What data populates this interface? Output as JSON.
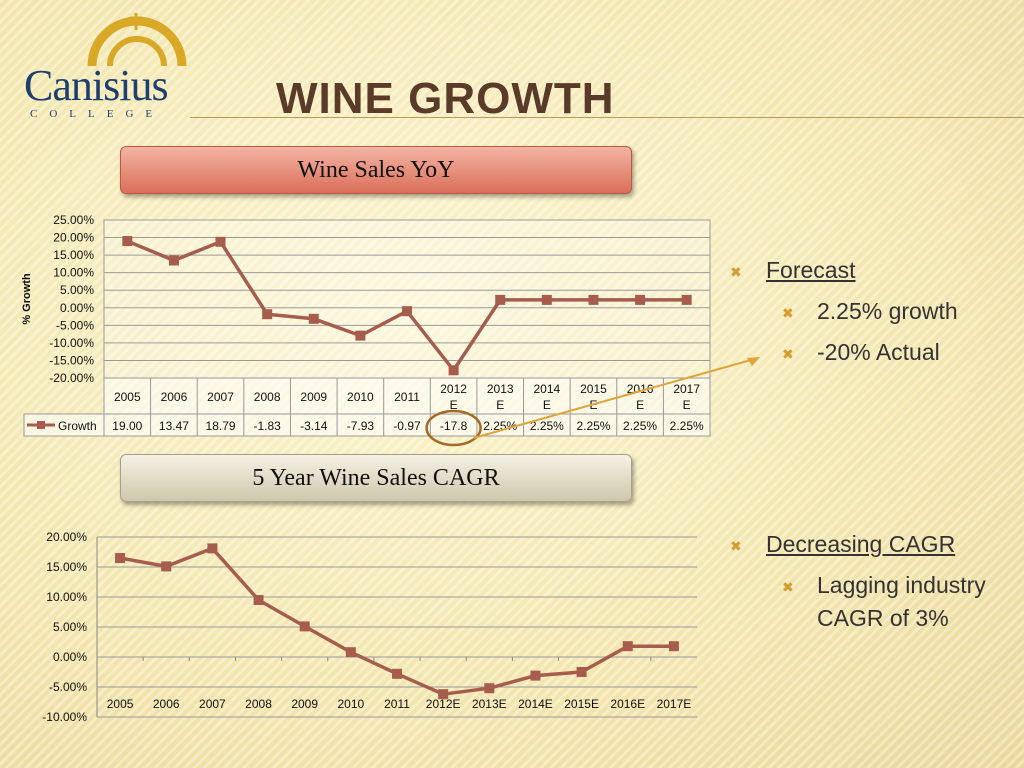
{
  "logo": {
    "name": "Canisius",
    "college": "COLLEGE"
  },
  "title": "Wine Growth",
  "banner_top": "Wine Sales YoY",
  "banner_bottom": "5 Year Wine Sales CAGR",
  "bullets_top": {
    "heading": "Forecast",
    "items": [
      "2.25% growth",
      "-20% Actual"
    ]
  },
  "bullets_bottom": {
    "heading": "Decreasing CAGR",
    "items": [
      "Lagging industry CAGR of 3%"
    ],
    "item_lines": [
      "Lagging industry",
      "CAGR of 3%"
    ]
  },
  "colors": {
    "line": "#a65d4e",
    "bullet": "#d89a2a",
    "highlight": "#a66a25",
    "arrow": "#e0a43a"
  },
  "chart_data": [
    {
      "type": "line",
      "ylabel": "% Growth",
      "ylim": [
        -20,
        25
      ],
      "yticks": [
        "25.00%",
        "20.00%",
        "15.00%",
        "10.00%",
        "5.00%",
        "0.00%",
        "-5.00%",
        "-10.00%",
        "-15.00%",
        "-20.00%"
      ],
      "categories": [
        "2005",
        "2006",
        "2007",
        "2008",
        "2009",
        "2010",
        "2011",
        "2012E",
        "2013E",
        "2014E",
        "2015E",
        "2016E",
        "2017E"
      ],
      "category_lines": [
        [
          "2005"
        ],
        [
          "2006"
        ],
        [
          "2007"
        ],
        [
          "2008"
        ],
        [
          "2009"
        ],
        [
          "2010"
        ],
        [
          "2011"
        ],
        [
          "2012",
          "E"
        ],
        [
          "2013",
          "E"
        ],
        [
          "2014",
          "E"
        ],
        [
          "2015",
          "E"
        ],
        [
          "2016",
          "E"
        ],
        [
          "2017",
          "E"
        ]
      ],
      "series": [
        {
          "name": "Growth",
          "values": [
            19.0,
            13.47,
            18.79,
            -1.83,
            -3.14,
            -7.93,
            -0.97,
            -17.8,
            2.25,
            2.25,
            2.25,
            2.25,
            2.25
          ],
          "labels": [
            "19.00",
            "13.47",
            "18.79",
            "-1.83",
            "-3.14",
            "-7.93",
            "-0.97",
            "-17.8",
            "2.25%",
            "2.25%",
            "2.25%",
            "2.25%",
            "2.25%"
          ]
        }
      ],
      "grid": true,
      "legend": "data-table"
    },
    {
      "type": "line",
      "ylim": [
        -10,
        20
      ],
      "yticks": [
        "20.00%",
        "15.00%",
        "10.00%",
        "5.00%",
        "0.00%",
        "-5.00%",
        "-10.00%"
      ],
      "categories": [
        "2005",
        "2006",
        "2007",
        "2008",
        "2009",
        "2010",
        "2011",
        "2012E",
        "2013E",
        "2014E",
        "2015E",
        "2016E",
        "2017E"
      ],
      "series": [
        {
          "values": [
            16.5,
            15.1,
            18.1,
            9.5,
            5.1,
            0.8,
            -2.8,
            -6.2,
            -5.2,
            -3.1,
            -2.5,
            1.8,
            1.8
          ]
        }
      ],
      "grid": true,
      "legend": "none"
    }
  ]
}
